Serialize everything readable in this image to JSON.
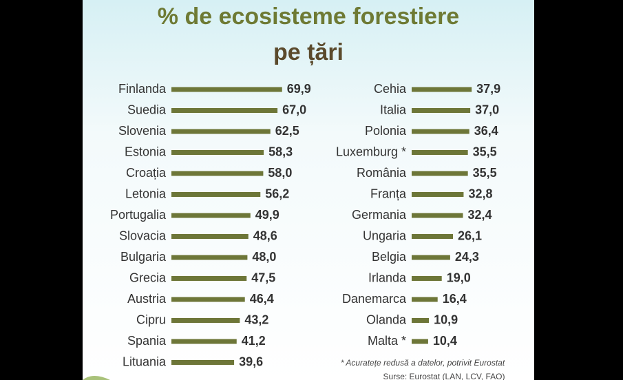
{
  "chart_data": [
    {
      "type": "bar",
      "orientation": "horizontal",
      "title": "% de ecosisteme forestiere",
      "subtitle": "pe țări",
      "color": "#6d7638",
      "categories": [
        "Finlanda",
        "Suedia",
        "Slovenia",
        "Estonia",
        "Croația",
        "Letonia",
        "Portugalia",
        "Slovacia",
        "Bulgaria",
        "Grecia",
        "Austria",
        "Cipru",
        "Spania",
        "Lituania"
      ],
      "values": [
        69.9,
        67.0,
        62.5,
        58.3,
        58.0,
        56.2,
        49.9,
        48.6,
        48.0,
        47.5,
        46.4,
        43.2,
        41.2,
        39.6
      ],
      "value_labels": [
        "69,9",
        "67,0",
        "62,5",
        "58,3",
        "58,0",
        "56,2",
        "49,9",
        "48,6",
        "48,0",
        "47,5",
        "46,4",
        "43,2",
        "41,2",
        "39,6"
      ]
    },
    {
      "type": "bar",
      "orientation": "horizontal",
      "color": "#6d7638",
      "categories": [
        "Cehia",
        "Italia",
        "Polonia",
        "Luxemburg *",
        "România",
        "Franța",
        "Germania",
        "Ungaria",
        "Belgia",
        "Irlanda",
        "Danemarca",
        "Olanda",
        "Malta *"
      ],
      "values": [
        37.9,
        37.0,
        36.4,
        35.5,
        35.5,
        32.8,
        32.4,
        26.1,
        24.3,
        19.0,
        16.4,
        10.9,
        10.4
      ],
      "value_labels": [
        "37,9",
        "37,0",
        "36,4",
        "35,5",
        "35,5",
        "32,8",
        "32,4",
        "26,1",
        "24,3",
        "19,0",
        "16,4",
        "10,9",
        "10,4"
      ],
      "annotations": [
        "* Acuratețe redusă a datelor, potrivit Eurostat",
        "Surse: Eurostat (LAN, LCV, FAO)"
      ]
    }
  ]
}
